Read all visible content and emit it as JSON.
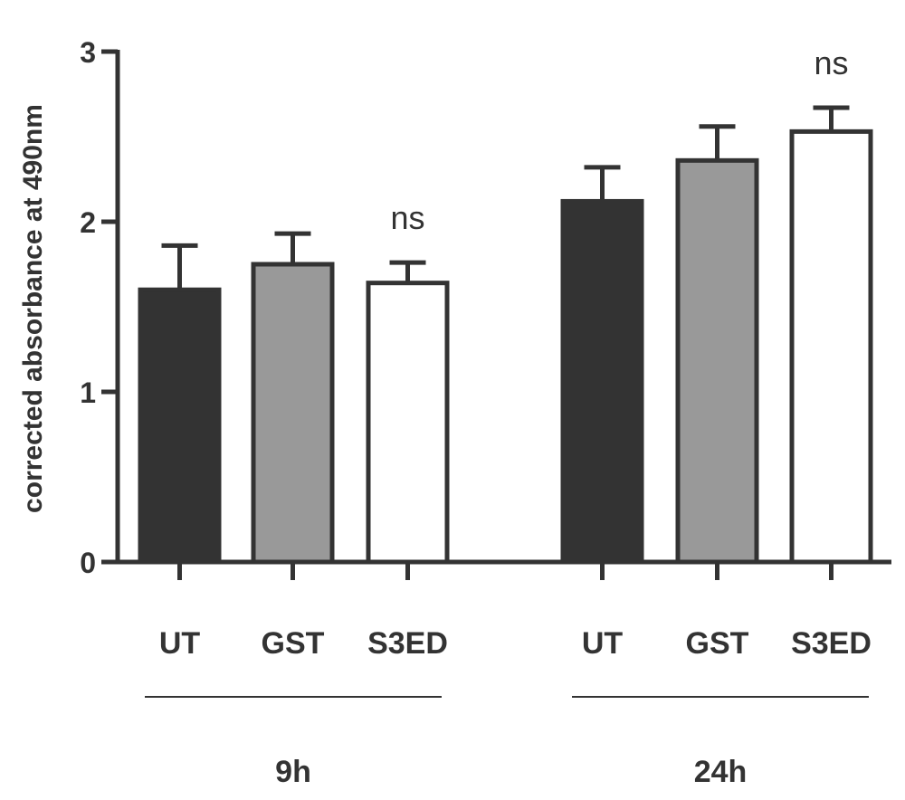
{
  "chart_data": {
    "type": "bar",
    "ylabel": "corrected absorbance at 490nm",
    "xlabel": "",
    "ylim": [
      0,
      3
    ],
    "yticks": [
      "0",
      "1",
      "2",
      "3"
    ],
    "grid": false,
    "legend": "none",
    "groups": [
      {
        "label": "9h",
        "bars": [
          {
            "category": "UT",
            "value": 1.6,
            "error": 0.26,
            "fill": "#333333",
            "annotation": ""
          },
          {
            "category": "GST",
            "value": 1.75,
            "error": 0.18,
            "fill": "#999999",
            "annotation": ""
          },
          {
            "category": "S3ED",
            "value": 1.64,
            "error": 0.12,
            "fill": "#ffffff",
            "annotation": "ns"
          }
        ]
      },
      {
        "label": "24h",
        "bars": [
          {
            "category": "UT",
            "value": 2.12,
            "error": 0.2,
            "fill": "#333333",
            "annotation": ""
          },
          {
            "category": "GST",
            "value": 2.36,
            "error": 0.2,
            "fill": "#999999",
            "annotation": ""
          },
          {
            "category": "S3ED",
            "value": 2.53,
            "error": 0.14,
            "fill": "#ffffff",
            "annotation": "ns"
          }
        ]
      }
    ]
  }
}
